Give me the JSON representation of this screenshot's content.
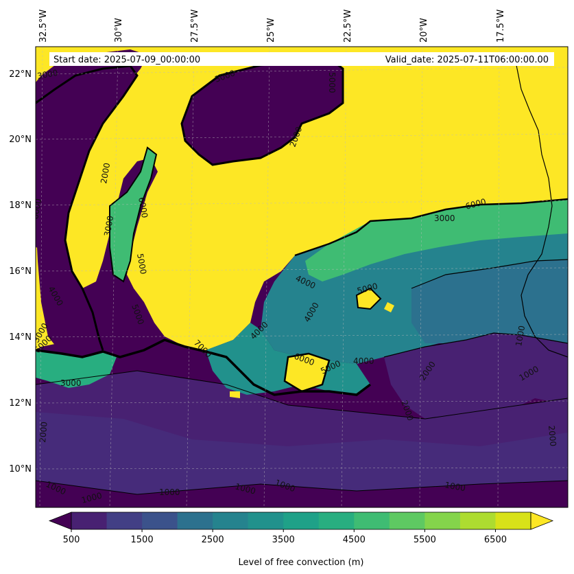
{
  "header": {
    "start_date": "Start date: 2025-07-09_00:00:00",
    "valid_date": "Valid_date: 2025-07-11T06:00:00.00"
  },
  "longitude_labels": [
    "32.5°W",
    "30°W",
    "27.5°W",
    "25°W",
    "22.5°W",
    "20°W",
    "17.5°W"
  ],
  "latitude_labels": [
    "22°N",
    "20°N",
    "18°N",
    "16°N",
    "14°N",
    "12°N",
    "10°N"
  ],
  "contour_labels": [
    "3000",
    "5000",
    "2000",
    "6000",
    "3000",
    "5000",
    "2000",
    "6000",
    "3000",
    "4000",
    "6000",
    "5000",
    "4000",
    "3000",
    "2000",
    "1000",
    "4000",
    "5000",
    "6000",
    "5000",
    "4000",
    "3000",
    "1000",
    "2000",
    "1000",
    "1000",
    "1000",
    "1000",
    "1000",
    "2000",
    "2000",
    "3000",
    "4000",
    "7000",
    "1000",
    "6000"
  ],
  "colorbar": {
    "label": "Level of free convection (m)",
    "tick_labels": [
      "500",
      "1500",
      "2500",
      "3500",
      "4500",
      "5500",
      "6500"
    ],
    "levels": [
      500,
      1000,
      1500,
      2000,
      2500,
      3000,
      3500,
      4000,
      4500,
      5000,
      5500,
      6000,
      6500,
      7000
    ],
    "colors": [
      "#440154",
      "#482172",
      "#423f85",
      "#3b528b",
      "#2c718e",
      "#25838e",
      "#21918c",
      "#1fa188",
      "#28ae80",
      "#3fbc73",
      "#5ec962",
      "#84d44b",
      "#addc30",
      "#d8e219",
      "#fde725"
    ]
  }
}
